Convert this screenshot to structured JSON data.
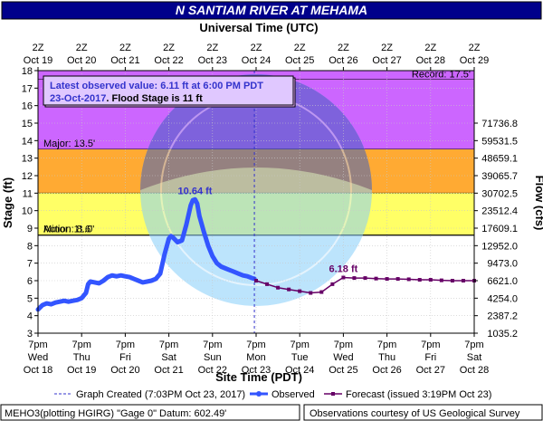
{
  "chart_data": {
    "type": "line",
    "title": "N SANTIAM RIVER AT MEHAMA",
    "top_axis_title": "Universal Time (UTC)",
    "bottom_axis_title": "Site Time (PDT)",
    "ylabel": "Stage (ft)",
    "y2label": "Flow (cfs)",
    "ylim": [
      3,
      18
    ],
    "yticks": [
      "3",
      "4",
      "5",
      "6",
      "7",
      "8",
      "9",
      "10",
      "11",
      "12",
      "13",
      "14",
      "15",
      "16",
      "17",
      "18"
    ],
    "flow_ticks": [
      {
        "stage": 3,
        "label": "1035.2"
      },
      {
        "stage": 4,
        "label": "2387.2"
      },
      {
        "stage": 5,
        "label": "4254.0"
      },
      {
        "stage": 6,
        "label": "6621.0"
      },
      {
        "stage": 7,
        "label": "9473.0"
      },
      {
        "stage": 8,
        "label": "12952.0"
      },
      {
        "stage": 9,
        "label": "17609.1"
      },
      {
        "stage": 10,
        "label": "23512.4"
      },
      {
        "stage": 11,
        "label": "30702.5"
      },
      {
        "stage": 12,
        "label": "39065.7"
      },
      {
        "stage": 13,
        "label": "48659.1"
      },
      {
        "stage": 14,
        "label": "59531.5"
      },
      {
        "stage": 15,
        "label": "71736.8"
      }
    ],
    "xlim_days": [
      0,
      10
    ],
    "bottom_ticks": [
      {
        "l1": "7pm",
        "l2": "Wed",
        "l3": "Oct 18"
      },
      {
        "l1": "7pm",
        "l2": "Thu",
        "l3": "Oct 19"
      },
      {
        "l1": "7pm",
        "l2": "Fri",
        "l3": "Oct 20"
      },
      {
        "l1": "7pm",
        "l2": "Sat",
        "l3": "Oct 21"
      },
      {
        "l1": "7pm",
        "l2": "Sun",
        "l3": "Oct 22"
      },
      {
        "l1": "7pm",
        "l2": "Mon",
        "l3": "Oct 23"
      },
      {
        "l1": "7pm",
        "l2": "Tue",
        "l3": "Oct 24"
      },
      {
        "l1": "7pm",
        "l2": "Wed",
        "l3": "Oct 25"
      },
      {
        "l1": "7pm",
        "l2": "Thu",
        "l3": "Oct 26"
      },
      {
        "l1": "7pm",
        "l2": "Fri",
        "l3": "Oct 27"
      },
      {
        "l1": "7pm",
        "l2": "Sat",
        "l3": "Oct 28"
      }
    ],
    "top_ticks": [
      {
        "l1": "2Z",
        "l2": "Oct 19"
      },
      {
        "l1": "2Z",
        "l2": "Oct 20"
      },
      {
        "l1": "2Z",
        "l2": "Oct 21"
      },
      {
        "l1": "2Z",
        "l2": "Oct 22"
      },
      {
        "l1": "2Z",
        "l2": "Oct 23"
      },
      {
        "l1": "2Z",
        "l2": "Oct 24"
      },
      {
        "l1": "2Z",
        "l2": "Oct 25"
      },
      {
        "l1": "2Z",
        "l2": "Oct 26"
      },
      {
        "l1": "2Z",
        "l2": "Oct 27"
      },
      {
        "l1": "2Z",
        "l2": "Oct 28"
      },
      {
        "l1": "2Z",
        "l2": "Oct 29"
      }
    ],
    "bands": [
      {
        "name": "Record",
        "label": "Record: 17.5'",
        "from": 17.5,
        "to": 18,
        "color": "#cc66ff",
        "label_pos": "right"
      },
      {
        "name": "Major",
        "label": "Major: 13.5'",
        "from": 13.5,
        "to": 17.5,
        "color": "#cc66ff",
        "label_pos": "left"
      },
      {
        "name": "Moderate",
        "label": "",
        "from": 11,
        "to": 13.5,
        "color": "#ffaa33",
        "label_pos": "left"
      },
      {
        "name": "Minor",
        "label": "Minor: 11.0'",
        "from": 8.6,
        "to": 11,
        "color": "#ffff66",
        "label_pos": "left"
      },
      {
        "name": "Action",
        "label": "Action: 8.6'",
        "from": 8.6,
        "to": 8.6,
        "color": "#000000",
        "label_pos": "left"
      }
    ],
    "info_box": {
      "line1": "Latest observed value: 6.11 ft at 6:00 PM PDT",
      "line2_date": "23-Oct-2017",
      "line2_rest": ". Flood Stage is 11 ft"
    },
    "now_day": 4.96,
    "annotations": [
      {
        "text": "10.64 ft",
        "x": 3.6,
        "y": 10.64,
        "color": "#3333cc"
      },
      {
        "text": "6.18 ft",
        "x": 7.0,
        "y": 6.18,
        "color": "#660066"
      }
    ],
    "series": [
      {
        "name": "Observed",
        "color": "#3355ff",
        "x": [
          0.0,
          0.1,
          0.2,
          0.3,
          0.4,
          0.5,
          0.6,
          0.7,
          0.8,
          0.9,
          1.0,
          1.1,
          1.15,
          1.2,
          1.3,
          1.4,
          1.5,
          1.6,
          1.7,
          1.8,
          1.9,
          2.0,
          2.1,
          2.2,
          2.3,
          2.4,
          2.5,
          2.6,
          2.7,
          2.8,
          2.9,
          3.0,
          3.05,
          3.1,
          3.2,
          3.3,
          3.4,
          3.5,
          3.55,
          3.6,
          3.65,
          3.7,
          3.8,
          3.9,
          4.0,
          4.1,
          4.2,
          4.3,
          4.4,
          4.5,
          4.6,
          4.7,
          4.8,
          4.9,
          4.96
        ],
        "values": [
          4.35,
          4.6,
          4.7,
          4.65,
          4.75,
          4.8,
          4.85,
          4.8,
          4.85,
          4.9,
          5.0,
          5.3,
          5.8,
          5.95,
          5.9,
          5.85,
          6.0,
          6.2,
          6.3,
          6.25,
          6.3,
          6.25,
          6.2,
          6.1,
          6.0,
          5.9,
          5.95,
          6.0,
          6.1,
          6.4,
          7.5,
          8.4,
          8.55,
          8.45,
          8.2,
          8.3,
          9.2,
          10.3,
          10.6,
          10.64,
          10.4,
          9.7,
          8.8,
          8.0,
          7.4,
          7.0,
          6.8,
          6.7,
          6.6,
          6.5,
          6.4,
          6.3,
          6.25,
          6.15,
          6.11
        ]
      },
      {
        "name": "Forecast",
        "color": "#660066",
        "x": [
          5.0,
          5.25,
          5.5,
          5.75,
          6.0,
          6.25,
          6.5,
          6.75,
          7.0,
          7.25,
          7.5,
          7.75,
          8.0,
          8.25,
          8.5,
          8.75,
          9.0,
          9.25,
          9.5,
          9.75,
          10.0
        ],
        "values": [
          6.0,
          5.8,
          5.6,
          5.5,
          5.4,
          5.3,
          5.35,
          5.8,
          6.18,
          6.15,
          6.15,
          6.12,
          6.1,
          6.1,
          6.08,
          6.05,
          6.05,
          6.02,
          6.0,
          6.0,
          6.0
        ]
      }
    ],
    "legend": [
      {
        "kind": "created",
        "label": "Graph Created (7:03PM Oct 23, 2017)"
      },
      {
        "kind": "observed",
        "label": "Observed"
      },
      {
        "kind": "forecast",
        "label": "Forecast (issued 3:19PM Oct 23)"
      }
    ],
    "footer_left": "MEHO3(plotting HGIRG) \"Gage 0\" Datum: 602.49'",
    "footer_right": "Observations courtesy of US Geological Survey"
  }
}
